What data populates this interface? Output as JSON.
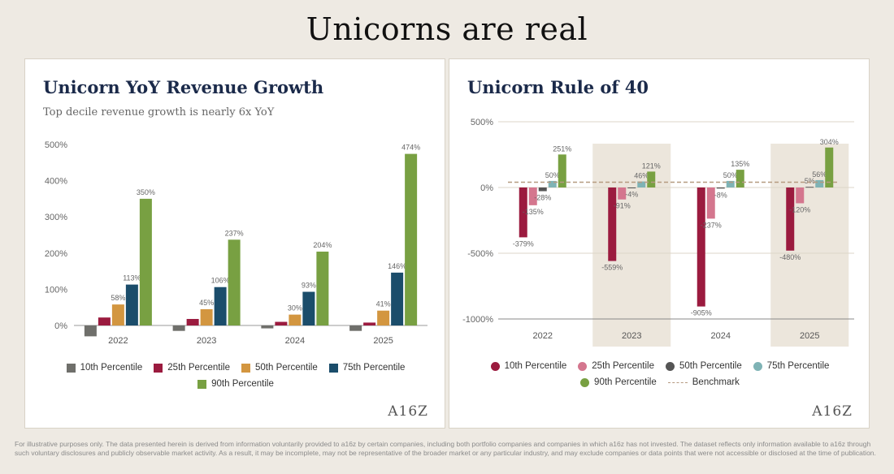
{
  "page": {
    "title": "Unicorns are real",
    "footnote": "For illustrative purposes only. The data presented herein is derived from information voluntarily provided to a16z by certain companies, including both portfolio companies and companies in which a16z has not invested. The dataset reflects only information available to a16z through such voluntary disclosures and publicly observable market activity. As a result, it may be incomplete, may not be representative of the broader market or any particular industry, and may exclude companies or data points that were not accessible or disclosed at the time of publication.",
    "logo": "A16Z"
  },
  "chart_data": [
    {
      "type": "bar",
      "title": "Unicorn YoY Revenue Growth",
      "subtitle": "Top decile revenue growth is nearly 6x YoY",
      "categories": [
        "2022",
        "2023",
        "2024",
        "2025"
      ],
      "ylim": [
        -30,
        500
      ],
      "yticks": [
        0,
        100,
        200,
        300,
        400,
        500
      ],
      "ytick_labels": [
        "0%",
        "100%",
        "200%",
        "300%",
        "400%",
        "500%"
      ],
      "grid": false,
      "legend_position": "bottom",
      "labeled_series": [
        "75th Percentile",
        "90th Percentile"
      ],
      "series": [
        {
          "name": "10th Percentile",
          "color": "#6f6f6b",
          "values": [
            -30,
            -15,
            -8,
            -15
          ]
        },
        {
          "name": "25th Percentile",
          "color": "#9b1b3f",
          "values": [
            22,
            18,
            10,
            8
          ]
        },
        {
          "name": "50th Percentile",
          "color": "#d39640",
          "values": [
            58,
            45,
            30,
            41
          ]
        },
        {
          "name": "75th Percentile",
          "color": "#1b4d6b",
          "values": [
            113,
            106,
            93,
            146
          ]
        },
        {
          "name": "90th Percentile",
          "color": "#78a042",
          "values": [
            350,
            237,
            204,
            474
          ]
        }
      ],
      "data_labels": {
        "50th Percentile": [
          "58%",
          "45%",
          "30%",
          "41%"
        ],
        "75th Percentile": [
          "113%",
          "106%",
          "93%",
          "146%"
        ],
        "90th Percentile": [
          "350%",
          "237%",
          "204%",
          "474%"
        ]
      }
    },
    {
      "type": "bar",
      "title": "Unicorn Rule of 40",
      "categories": [
        "2022",
        "2023",
        "2024",
        "2025"
      ],
      "ylim": [
        -1000,
        500
      ],
      "yticks": [
        -1000,
        -500,
        0,
        500
      ],
      "ytick_labels": [
        "-1000%",
        "-500%",
        "0%",
        "500%"
      ],
      "grid": true,
      "legend_position": "bottom",
      "shaded_categories": [
        "2023",
        "2025"
      ],
      "benchmark": {
        "name": "Benchmark",
        "value": 40,
        "color": "#b59a80"
      },
      "series": [
        {
          "name": "10th Percentile",
          "color": "#9b1b3f",
          "values": [
            -379,
            -559,
            -905,
            -480
          ]
        },
        {
          "name": "25th Percentile",
          "color": "#d4768e",
          "values": [
            -135,
            -91,
            -237,
            -120
          ]
        },
        {
          "name": "50th Percentile",
          "color": "#555555",
          "values": [
            -28,
            -4,
            -8,
            5
          ]
        },
        {
          "name": "75th Percentile",
          "color": "#7fb3b5",
          "values": [
            50,
            46,
            50,
            56
          ]
        },
        {
          "name": "90th Percentile",
          "color": "#78a042",
          "values": [
            251,
            121,
            135,
            304
          ]
        }
      ],
      "data_labels": {
        "10th Percentile": [
          "-379%",
          "-559%",
          "-905%",
          "-480%"
        ],
        "25th Percentile": [
          "-135%",
          "-91%",
          "-237%",
          "-120%"
        ],
        "50th Percentile": [
          "-28%",
          "-4%",
          "-8%",
          "5%"
        ],
        "75th Percentile": [
          "50%",
          "46%",
          "50%",
          "56%"
        ],
        "90th Percentile": [
          "251%",
          "121%",
          "135%",
          "304%"
        ]
      }
    }
  ]
}
